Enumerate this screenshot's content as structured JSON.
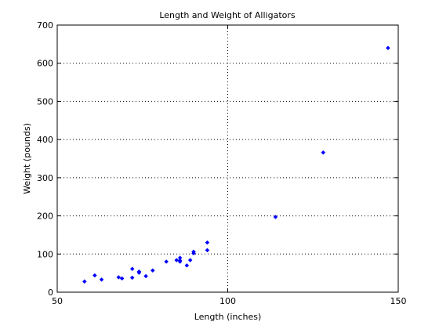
{
  "chart_data": {
    "type": "scatter",
    "title": "Length and Weight of Alligators",
    "xlabel": "Length (inches)",
    "ylabel": "Weight (pounds)",
    "xlim": [
      50,
      150
    ],
    "ylim": [
      0,
      700
    ],
    "xticks": [
      50,
      100,
      150
    ],
    "yticks": [
      0,
      100,
      200,
      300,
      400,
      500,
      600,
      700
    ],
    "grid": true,
    "marker_color": "#0000ff",
    "series": [
      {
        "x": [
          58,
          61,
          63,
          68,
          69,
          72,
          72,
          74,
          74,
          76,
          78,
          82,
          85,
          86,
          86,
          86,
          88,
          89,
          90,
          90,
          94,
          94,
          114,
          128,
          147
        ],
        "y": [
          28,
          44,
          33,
          39,
          36,
          38,
          61,
          54,
          51,
          42,
          57,
          80,
          84,
          83,
          80,
          90,
          70,
          84,
          102,
          106,
          110,
          130,
          197,
          366,
          640
        ]
      }
    ]
  }
}
